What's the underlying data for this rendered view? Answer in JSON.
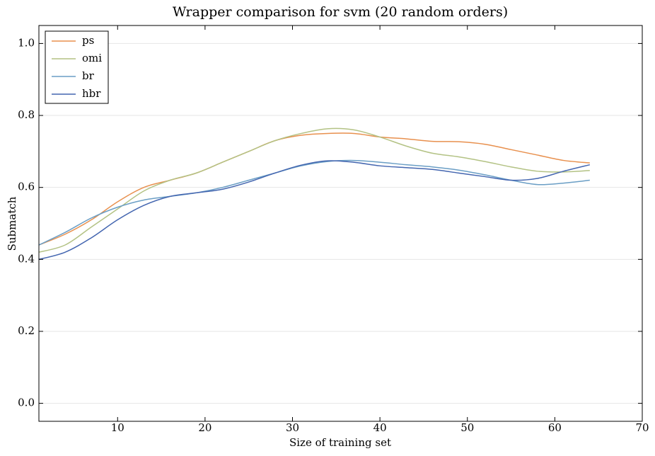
{
  "chart_data": {
    "type": "line",
    "title": "Wrapper comparison for svm (20 random orders)",
    "xlabel": "Size of training set",
    "ylabel": "Submatch",
    "x": [
      1,
      4,
      7,
      10,
      13,
      16,
      19,
      22,
      25,
      28,
      31,
      34,
      37,
      40,
      43,
      46,
      49,
      52,
      55,
      58,
      61,
      64
    ],
    "series": [
      {
        "name": "ps",
        "color": "#e8904e",
        "values": [
          0.44,
          0.47,
          0.51,
          0.56,
          0.6,
          0.62,
          0.64,
          0.67,
          0.7,
          0.73,
          0.745,
          0.75,
          0.75,
          0.74,
          0.735,
          0.728,
          0.727,
          0.72,
          0.705,
          0.69,
          0.675,
          0.668
        ]
      },
      {
        "name": "omi",
        "color": "#b3c284",
        "values": [
          0.42,
          0.44,
          0.49,
          0.54,
          0.59,
          0.62,
          0.64,
          0.67,
          0.7,
          0.73,
          0.75,
          0.763,
          0.76,
          0.74,
          0.715,
          0.695,
          0.685,
          0.672,
          0.657,
          0.645,
          0.643,
          0.647
        ]
      },
      {
        "name": "br",
        "color": "#6a9ec5",
        "values": [
          0.44,
          0.475,
          0.515,
          0.545,
          0.565,
          0.575,
          0.585,
          0.6,
          0.62,
          0.64,
          0.66,
          0.672,
          0.675,
          0.67,
          0.663,
          0.657,
          0.648,
          0.635,
          0.62,
          0.608,
          0.612,
          0.62
        ]
      },
      {
        "name": "hbr",
        "color": "#4466b0",
        "values": [
          0.4,
          0.42,
          0.46,
          0.51,
          0.55,
          0.575,
          0.585,
          0.595,
          0.615,
          0.64,
          0.662,
          0.674,
          0.67,
          0.66,
          0.655,
          0.65,
          0.64,
          0.63,
          0.62,
          0.625,
          0.645,
          0.663
        ]
      }
    ],
    "xlim": [
      1,
      70
    ],
    "xticks": [
      10,
      20,
      30,
      40,
      50,
      60,
      70
    ],
    "ylim": [
      -0.05,
      1.05
    ],
    "yticks": [
      {
        "value": 0,
        "label": "0.0"
      },
      0.2,
      0.4,
      0.6,
      0.8,
      {
        "value": 1,
        "label": "1.0"
      }
    ],
    "grid": true,
    "legend": "upper-left"
  }
}
